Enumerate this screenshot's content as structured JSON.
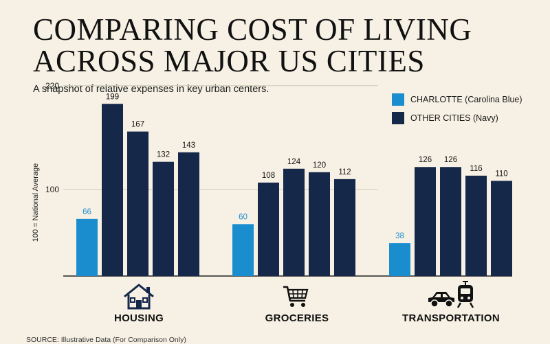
{
  "header": {
    "title": "COMPARING COST OF LIVING ACROSS MAJOR US CITIES",
    "subtitle": "A snapshot of relative expenses in key urban centers."
  },
  "legend": {
    "items": [
      {
        "label": "CHARLOTTE (Carolina Blue)",
        "color": "#1a8dcf"
      },
      {
        "label": "OTHER CITIES (Navy)",
        "color": "#15284a"
      }
    ]
  },
  "footer": {
    "source": "SOURCE: Illustrative Data (For Comparison Only)"
  },
  "icons": [
    "house-icon",
    "shopping-cart-icon",
    "car-icon",
    "train-icon"
  ],
  "chart_data": {
    "type": "bar",
    "title": "COMPARING COST OF LIVING ACROSS MAJOR US CITIES",
    "subtitle": "A snapshot of relative expenses in key urban centers.",
    "ylabel": "100 = National Average",
    "xlabel": "",
    "ylim": [
      0,
      220
    ],
    "yticks": [
      100,
      220
    ],
    "grid": true,
    "legend_position": "top-right",
    "categories": [
      "HOUSING",
      "GROCERIES",
      "TRANSPORTATION"
    ],
    "series": [
      {
        "name": "CHARLOTTE (Carolina Blue)",
        "color": "#1a8dcf",
        "values": [
          66,
          60,
          38
        ]
      },
      {
        "name": "OTHER CITIES (Navy)",
        "color": "#15284a",
        "values": [
          199,
          108,
          126
        ]
      },
      {
        "color": "#15284a",
        "values": [
          167,
          124,
          126
        ]
      },
      {
        "color": "#15284a",
        "values": [
          132,
          120,
          116
        ]
      },
      {
        "color": "#15284a",
        "values": [
          143,
          112,
          110
        ]
      }
    ]
  }
}
